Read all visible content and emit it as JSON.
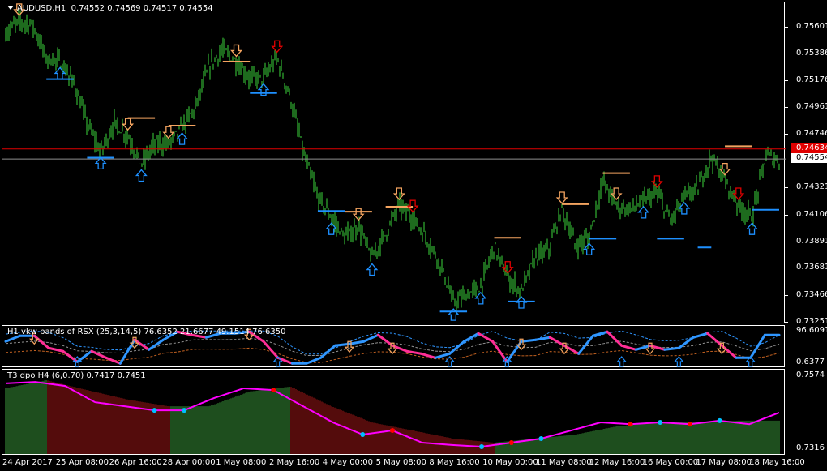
{
  "header": {
    "symbol_title": "AUDUSD,H1",
    "ohlc": "0.74552 0.74569 0.74517 0.74554"
  },
  "colors": {
    "background": "#000000",
    "bars": "#3cd63c",
    "support": "#1e90ff",
    "resistance": "#f4a460",
    "arrow_up": "#1e90ff",
    "arrow_down": "#f4a460",
    "arrow_signal": "#e00000",
    "ask_line": "#e00000",
    "bid_line": "#909090",
    "rsx_up": "#2f96ff",
    "rsx_down": "#ff2e96",
    "band_upper": "#2f96ff",
    "band_mid": "#909090",
    "band_lower": "#c06020",
    "dpo_line": "#ff00ff",
    "hist_up": "#50d050",
    "hist_down": "#e02020",
    "dot_blue": "#00bfff",
    "dot_red": "#ff0000"
  },
  "chart_data": [
    {
      "type": "bar",
      "title": "AUDUSD,H1",
      "ylim": [
        0.73251,
        0.75601
      ],
      "y_ticks": [
        "0.75601",
        "0.75386",
        "0.75176",
        "0.74961",
        "0.74746",
        "0.74321",
        "0.74106",
        "0.73891",
        "0.73681",
        "0.73466",
        "0.73251"
      ],
      "y_tick_values": [
        0.75601,
        0.75386,
        0.75176,
        0.74961,
        0.74746,
        0.74321,
        0.74106,
        0.73891,
        0.73681,
        0.73466,
        0.73251
      ],
      "x_ticks": [
        "24 Apr 2017",
        "25 Apr 08:00",
        "26 Apr 16:00",
        "28 Apr 00:00",
        "1 May 08:00",
        "2 May 16:00",
        "4 May 00:00",
        "5 May 08:00",
        "8 May 16:00",
        "10 May 00:00",
        "11 May 08:00",
        "12 May 16:00",
        "16 May 00:00",
        "17 May 08:00",
        "18 May 16:00"
      ],
      "ask_price": {
        "label": "0.74634",
        "value": 0.74634
      },
      "bid_price": {
        "label": "0.74554",
        "value": 0.74554
      },
      "price_path": [
        0.75555,
        0.75653,
        0.75621,
        0.7536,
        0.75327,
        0.75164,
        0.74839,
        0.74611,
        0.74839,
        0.74741,
        0.74513,
        0.74676,
        0.74676,
        0.74806,
        0.74969,
        0.75295,
        0.75425,
        0.75327,
        0.75197,
        0.75197,
        0.7536,
        0.75034,
        0.74578,
        0.74252,
        0.74089,
        0.73927,
        0.74024,
        0.73764,
        0.73959,
        0.74187,
        0.74089,
        0.73927,
        0.73731,
        0.73405,
        0.73471,
        0.73536,
        0.73861,
        0.73601,
        0.73503,
        0.73764,
        0.73829,
        0.74155,
        0.73861,
        0.73927,
        0.74383,
        0.74187,
        0.74155,
        0.7422,
        0.74285,
        0.74057,
        0.74252,
        0.74318,
        0.74578,
        0.74383,
        0.74187,
        0.74089,
        0.74578,
        0.74546
      ],
      "arrows": [
        {
          "at": 1,
          "dir": "down"
        },
        {
          "at": 4,
          "dir": "up"
        },
        {
          "at": 7,
          "dir": "up"
        },
        {
          "at": 9,
          "dir": "down"
        },
        {
          "at": 10,
          "dir": "up"
        },
        {
          "at": 12,
          "dir": "down"
        },
        {
          "at": 13,
          "dir": "up"
        },
        {
          "at": 17,
          "dir": "down"
        },
        {
          "at": 19,
          "dir": "up"
        },
        {
          "at": 20,
          "dir": "signal"
        },
        {
          "at": 24,
          "dir": "up"
        },
        {
          "at": 26,
          "dir": "down"
        },
        {
          "at": 27,
          "dir": "up"
        },
        {
          "at": 29,
          "dir": "down"
        },
        {
          "at": 30,
          "dir": "signal"
        },
        {
          "at": 33,
          "dir": "up"
        },
        {
          "at": 35,
          "dir": "up"
        },
        {
          "at": 37,
          "dir": "signal"
        },
        {
          "at": 38,
          "dir": "up"
        },
        {
          "at": 41,
          "dir": "down"
        },
        {
          "at": 43,
          "dir": "up"
        },
        {
          "at": 45,
          "dir": "down"
        },
        {
          "at": 47,
          "dir": "up"
        },
        {
          "at": 48,
          "dir": "signal"
        },
        {
          "at": 50,
          "dir": "up"
        },
        {
          "at": 53,
          "dir": "down"
        },
        {
          "at": 54,
          "dir": "signal"
        },
        {
          "at": 55,
          "dir": "up"
        }
      ],
      "levels": [
        {
          "kind": "support",
          "price": 0.7519,
          "from": 3,
          "to": 5
        },
        {
          "kind": "support",
          "price": 0.74565,
          "from": 6,
          "to": 8
        },
        {
          "kind": "resistance",
          "price": 0.7488,
          "from": 9,
          "to": 11
        },
        {
          "kind": "resistance",
          "price": 0.7482,
          "from": 12,
          "to": 14
        },
        {
          "kind": "resistance",
          "price": 0.7533,
          "from": 16,
          "to": 18
        },
        {
          "kind": "support",
          "price": 0.7508,
          "from": 18,
          "to": 20
        },
        {
          "kind": "support",
          "price": 0.7414,
          "from": 23,
          "to": 25
        },
        {
          "kind": "resistance",
          "price": 0.74135,
          "from": 25,
          "to": 27
        },
        {
          "kind": "resistance",
          "price": 0.74174,
          "from": 28,
          "to": 30
        },
        {
          "kind": "support",
          "price": 0.7334,
          "from": 32,
          "to": 34
        },
        {
          "kind": "resistance",
          "price": 0.73927,
          "from": 36,
          "to": 38
        },
        {
          "kind": "support",
          "price": 0.7342,
          "from": 37,
          "to": 39
        },
        {
          "kind": "resistance",
          "price": 0.74194,
          "from": 41,
          "to": 43
        },
        {
          "kind": "support",
          "price": 0.7392,
          "from": 43,
          "to": 45
        },
        {
          "kind": "resistance",
          "price": 0.74441,
          "from": 44,
          "to": 46
        },
        {
          "kind": "support",
          "price": 0.7392,
          "from": 48,
          "to": 50
        },
        {
          "kind": "support",
          "price": 0.7385,
          "from": 51,
          "to": 52
        },
        {
          "kind": "resistance",
          "price": 0.74656,
          "from": 53,
          "to": 55
        },
        {
          "kind": "support",
          "price": 0.7415,
          "from": 55,
          "to": 57
        }
      ]
    },
    {
      "type": "line",
      "title": "H1 vkw bands of RSX (25,3,14,5) 76.6352 21.6677 49.1514 76.6350",
      "ylim": [
        0.6377,
        96.6091
      ],
      "y_ticks": [
        "96.6091",
        "0.6377"
      ],
      "rsx": [
        64.8,
        81.6,
        81.6,
        45.6,
        36,
        4.8,
        36,
        16.8,
        0,
        69.6,
        40.8,
        69.6,
        93.6,
        84,
        76.8,
        88.8,
        88.8,
        93.6,
        64.8,
        16.8,
        0,
        0,
        16.8,
        52.8,
        57.6,
        64.8,
        84,
        52.8,
        36,
        28.8,
        16.8,
        28.8,
        64.8,
        88.8,
        64.8,
        4.8,
        64.8,
        69.6,
        76.8,
        52.8,
        28.8,
        81.6,
        93.6,
        52.8,
        40.8,
        52.8,
        40.8,
        45.6,
        76.8,
        88.8,
        52.8,
        16.8,
        16.8,
        84,
        84
      ],
      "arrows": [
        {
          "at": 2,
          "dir": "down"
        },
        {
          "at": 9,
          "dir": "down"
        },
        {
          "at": 17,
          "dir": "down"
        },
        {
          "at": 24,
          "dir": "down"
        },
        {
          "at": 27,
          "dir": "down"
        },
        {
          "at": 36,
          "dir": "down"
        },
        {
          "at": 39,
          "dir": "down"
        },
        {
          "at": 45,
          "dir": "down"
        },
        {
          "at": 50,
          "dir": "down"
        },
        {
          "at": 5,
          "dir": "up"
        },
        {
          "at": 19,
          "dir": "up"
        },
        {
          "at": 31,
          "dir": "up"
        },
        {
          "at": 35,
          "dir": "up"
        },
        {
          "at": 43,
          "dir": "up"
        },
        {
          "at": 47,
          "dir": "up"
        },
        {
          "at": 52,
          "dir": "up"
        }
      ]
    },
    {
      "type": "bar",
      "title": "T3 dpo H4 (6,0.70) 0.7417 0.7451",
      "ylim": [
        0.7316,
        0.7574
      ],
      "y_ticks": [
        "0.7574",
        "0.7316"
      ],
      "histogram": [
        0.7532,
        0.756,
        0.7526,
        0.7493,
        0.747,
        0.747,
        0.7521,
        0.7538,
        0.747,
        0.7414,
        0.7386,
        0.7358,
        0.7344,
        0.7358,
        0.7372,
        0.74,
        0.7414,
        0.7414,
        0.742,
        0.742
      ],
      "dpo_line": [
        0.7549,
        0.7554,
        0.754,
        0.7484,
        0.747,
        0.7456,
        0.7456,
        0.7498,
        0.7532,
        0.7526,
        0.747,
        0.7414,
        0.7372,
        0.7386,
        0.7344,
        0.7336,
        0.733,
        0.7344,
        0.7358,
        0.7386,
        0.7414,
        0.7408,
        0.7414,
        0.7408,
        0.742,
        0.7408,
        0.7448
      ],
      "dots": [
        {
          "at": 5,
          "color": "blue"
        },
        {
          "at": 6,
          "color": "blue"
        },
        {
          "at": 9,
          "color": "red"
        },
        {
          "at": 12,
          "color": "blue"
        },
        {
          "at": 13,
          "color": "red"
        },
        {
          "at": 16,
          "color": "blue"
        },
        {
          "at": 17,
          "color": "red"
        },
        {
          "at": 18,
          "color": "blue"
        },
        {
          "at": 21,
          "color": "red"
        },
        {
          "at": 22,
          "color": "blue"
        },
        {
          "at": 23,
          "color": "red"
        },
        {
          "at": 24,
          "color": "blue"
        }
      ]
    }
  ]
}
